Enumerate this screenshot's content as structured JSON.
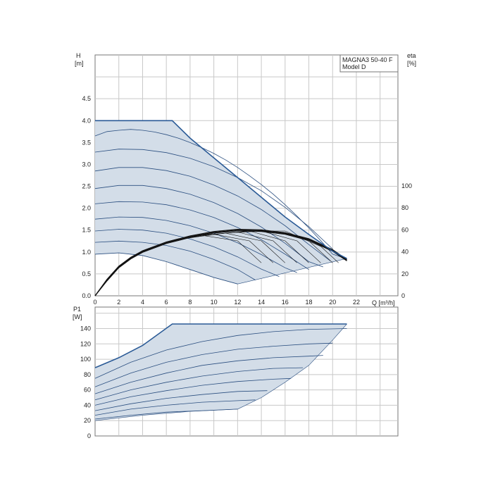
{
  "colors": {
    "envelope": "#2a5a96",
    "fill": "#d3dde8",
    "curve": "#2b4f80",
    "efficiency": "#111111",
    "grid": "#c8c8c8",
    "frame": "#777777"
  },
  "chart_data": [
    {
      "id": "head",
      "type": "line",
      "legend": {
        "line1": "MAGNA3 50-40 F",
        "line2": "Model D",
        "placement": "top-right"
      },
      "ylabel": "H",
      "yunit": "[m]",
      "y2label": "eta",
      "y2unit": "[%]",
      "xlabel": "Q [m³/h]",
      "xlim": [
        0,
        25.5
      ],
      "ylim": [
        0,
        5.5
      ],
      "y2lim": [
        0,
        100
      ],
      "grid": true,
      "x_ticks": [
        "0",
        "2",
        "4",
        "6",
        "8",
        "10",
        "12",
        "14",
        "16",
        "18",
        "20",
        "22"
      ],
      "y_ticks": [
        "0.0",
        "0.5",
        "1.0",
        "1.5",
        "2.0",
        "2.5",
        "3.0",
        "3.5",
        "4.0",
        "4.5"
      ],
      "y2_ticks": [
        "0",
        "20",
        "40",
        "60",
        "80",
        "100"
      ],
      "envelope": {
        "name": "max",
        "x": [
          0,
          6.5,
          8,
          10,
          12,
          14,
          16,
          18,
          20,
          21.2
        ],
        "y": [
          4.0,
          4.0,
          3.6,
          3.15,
          2.7,
          2.25,
          1.8,
          1.4,
          1.02,
          0.85
        ]
      },
      "min_curve": {
        "x": [
          0,
          2,
          4,
          6,
          8,
          10,
          12
        ],
        "y": [
          0.95,
          0.98,
          0.92,
          0.78,
          0.6,
          0.42,
          0.27
        ]
      },
      "min_boundary": {
        "x": [
          12,
          21.2
        ],
        "y": [
          0.27,
          0.85
        ]
      },
      "series": [
        {
          "x": [
            0,
            1,
            2,
            3,
            4,
            5,
            6,
            7,
            8,
            9,
            10,
            11,
            12,
            13,
            14,
            15,
            16,
            17,
            18,
            19,
            20,
            20.8
          ],
          "y": [
            3.65,
            3.75,
            3.78,
            3.8,
            3.78,
            3.74,
            3.68,
            3.6,
            3.5,
            3.38,
            3.25,
            3.1,
            2.93,
            2.74,
            2.54,
            2.32,
            2.08,
            1.82,
            1.55,
            1.26,
            0.95,
            0.88
          ]
        },
        {
          "x": [
            0,
            2,
            4,
            6,
            8,
            10,
            12,
            14,
            16,
            18,
            20
          ],
          "y": [
            3.28,
            3.35,
            3.34,
            3.27,
            3.14,
            2.95,
            2.7,
            2.4,
            2.02,
            1.58,
            1.07
          ]
        },
        {
          "x": [
            0,
            2,
            4,
            6,
            8,
            10,
            12,
            14,
            16,
            18,
            19.8
          ],
          "y": [
            2.85,
            2.93,
            2.93,
            2.86,
            2.73,
            2.53,
            2.28,
            1.97,
            1.6,
            1.17,
            0.8
          ]
        },
        {
          "x": [
            0,
            2,
            4,
            6,
            8,
            10,
            12,
            14,
            16,
            18,
            19.2
          ],
          "y": [
            2.45,
            2.52,
            2.52,
            2.45,
            2.32,
            2.13,
            1.88,
            1.57,
            1.2,
            0.78,
            0.66
          ]
        },
        {
          "x": [
            0,
            2,
            4,
            6,
            8,
            10,
            12,
            14,
            16,
            18
          ],
          "y": [
            2.1,
            2.15,
            2.14,
            2.08,
            1.96,
            1.79,
            1.56,
            1.28,
            0.95,
            0.6
          ]
        },
        {
          "x": [
            0,
            2,
            4,
            6,
            8,
            10,
            12,
            14,
            16,
            17
          ],
          "y": [
            1.75,
            1.8,
            1.79,
            1.72,
            1.6,
            1.43,
            1.21,
            0.94,
            0.64,
            0.53
          ]
        },
        {
          "x": [
            0,
            2,
            4,
            6,
            8,
            10,
            12,
            14,
            15.5
          ],
          "y": [
            1.48,
            1.52,
            1.5,
            1.43,
            1.3,
            1.12,
            0.89,
            0.61,
            0.44
          ]
        },
        {
          "x": [
            0,
            2,
            4,
            6,
            8,
            10,
            12,
            13.5
          ],
          "y": [
            1.22,
            1.25,
            1.22,
            1.15,
            1.02,
            0.83,
            0.6,
            0.36
          ]
        }
      ],
      "efficiency": [
        {
          "x": [
            0,
            1,
            2,
            3,
            4,
            6,
            8,
            10,
            12,
            14,
            16,
            18,
            20,
            21.2
          ],
          "y": [
            0,
            15,
            27,
            35,
            41,
            49,
            54.5,
            58.5,
            60.5,
            60,
            57.5,
            52,
            42,
            33
          ]
        },
        {
          "x": [
            0,
            1,
            2,
            3,
            4,
            6,
            8,
            10,
            12,
            14,
            16,
            18,
            20,
            21.2
          ],
          "y": [
            0,
            14.3,
            26.3,
            34.3,
            40.3,
            48.3,
            53.8,
            57.8,
            59.8,
            59.3,
            56.8,
            51.3,
            41.3,
            32.4
          ]
        },
        {
          "x": [
            0,
            1,
            2,
            3,
            4,
            6,
            8,
            10,
            12,
            14,
            16,
            18,
            20,
            21.2
          ],
          "y": [
            0,
            13.6,
            25.6,
            33.6,
            39.6,
            47.6,
            53.1,
            57.1,
            59.1,
            58.6,
            56.1,
            50.6,
            40.6,
            31.8
          ]
        }
      ],
      "eff_branches": [
        {
          "x": [
            6,
            9,
            12,
            14
          ],
          "y": [
            49,
            55,
            50,
            30
          ]
        },
        {
          "x": [
            7,
            10,
            13,
            15
          ],
          "y": [
            51,
            56,
            50,
            30
          ]
        },
        {
          "x": [
            8,
            11,
            14,
            16
          ],
          "y": [
            53,
            57,
            50,
            30
          ]
        },
        {
          "x": [
            9,
            12,
            15,
            17
          ],
          "y": [
            55,
            58,
            50,
            30
          ]
        },
        {
          "x": [
            10,
            13,
            16,
            18
          ],
          "y": [
            56,
            59,
            50,
            30
          ]
        },
        {
          "x": [
            11,
            14,
            17,
            19
          ],
          "y": [
            57,
            59,
            50,
            30
          ]
        },
        {
          "x": [
            12,
            15,
            18,
            20
          ],
          "y": [
            58,
            59,
            50,
            30
          ]
        },
        {
          "x": [
            13,
            16,
            19,
            20.5
          ],
          "y": [
            59,
            59,
            45,
            30
          ]
        }
      ]
    },
    {
      "id": "power",
      "type": "line",
      "ylabel": "P1",
      "yunit": "[W]",
      "xlim": [
        0,
        25.5
      ],
      "ylim": [
        0,
        168
      ],
      "grid": true,
      "y_ticks": [
        "0",
        "20",
        "40",
        "60",
        "80",
        "100",
        "120",
        "140"
      ],
      "envelope": {
        "x": [
          0,
          2,
          4,
          6.5,
          8,
          10,
          12,
          14,
          16,
          18,
          20,
          21.2
        ],
        "y": [
          89,
          102,
          118,
          146,
          146,
          146,
          146,
          146,
          146,
          146,
          146,
          146
        ]
      },
      "lower_boundary": {
        "x": [
          0,
          4,
          8,
          12,
          14,
          16,
          18,
          20,
          21.2
        ],
        "y": [
          20,
          27,
          32,
          35,
          50,
          70,
          92,
          125,
          146
        ]
      },
      "series": [
        {
          "x": [
            0,
            3,
            6,
            9,
            12,
            15,
            18,
            21.2
          ],
          "y": [
            75,
            96,
            112,
            123,
            131,
            136,
            139,
            140
          ]
        },
        {
          "x": [
            0,
            3,
            6,
            9,
            12,
            15,
            18,
            20
          ],
          "y": [
            64,
            82,
            96,
            106,
            113,
            117,
            120,
            121
          ]
        },
        {
          "x": [
            0,
            3,
            6,
            9,
            12,
            15,
            18,
            19.2
          ],
          "y": [
            55,
            70,
            82,
            92,
            98,
            102,
            104,
            105
          ]
        },
        {
          "x": [
            0,
            3,
            6,
            9,
            12,
            15,
            17.5
          ],
          "y": [
            47,
            60,
            70,
            78,
            84,
            88,
            89
          ]
        },
        {
          "x": [
            0,
            3,
            6,
            9,
            12,
            15,
            16.5
          ],
          "y": [
            40,
            51,
            59,
            66,
            71,
            74,
            75
          ]
        },
        {
          "x": [
            0,
            3,
            6,
            9,
            12,
            14.5
          ],
          "y": [
            33,
            42,
            49,
            54,
            58,
            59
          ]
        },
        {
          "x": [
            0,
            3,
            6,
            9,
            12,
            13.5
          ],
          "y": [
            27,
            35,
            40,
            44,
            46,
            47
          ]
        },
        {
          "x": [
            0,
            3,
            6,
            9,
            12
          ],
          "y": [
            22,
            27,
            31,
            33,
            35
          ]
        }
      ]
    }
  ]
}
